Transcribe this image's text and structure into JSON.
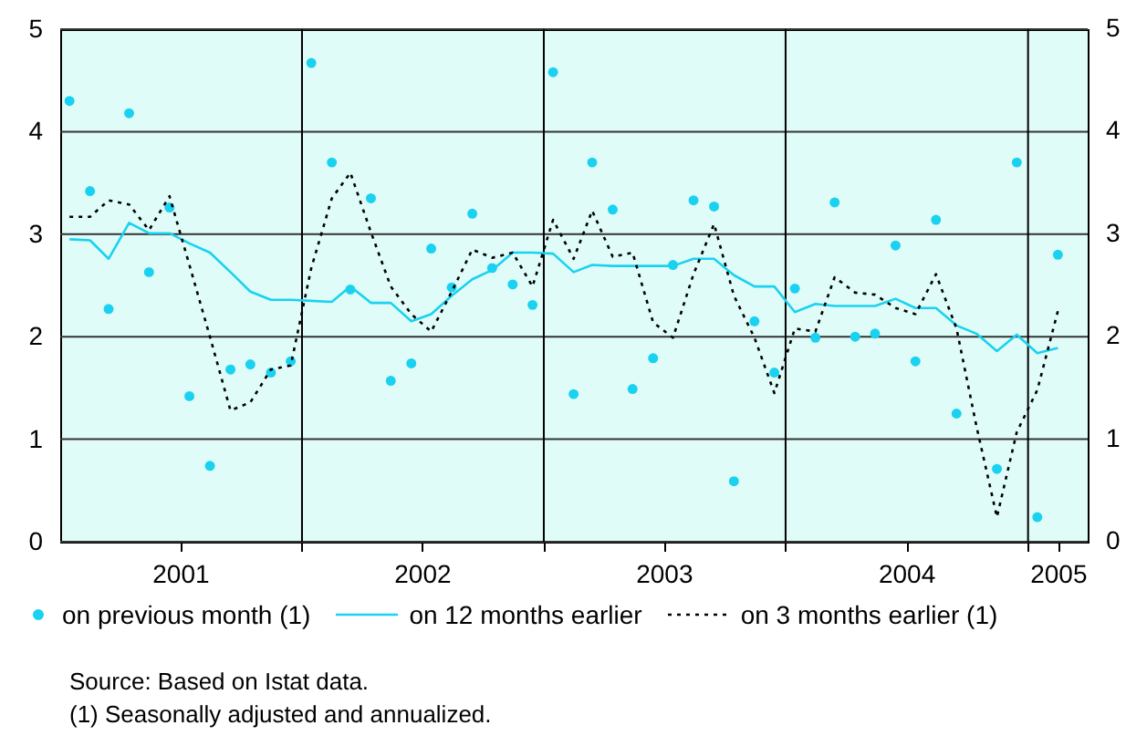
{
  "chart_data": {
    "type": "line",
    "x": [
      "2001-01-15",
      "2001-02-15",
      "2001-03-15",
      "2001-04-15",
      "2001-05-15",
      "2001-06-15",
      "2001-07-15",
      "2001-08-15",
      "2001-09-15",
      "2001-10-15",
      "2001-11-15",
      "2001-12-15",
      "2002-01-15",
      "2002-02-15",
      "2002-03-15",
      "2002-04-15",
      "2002-05-15",
      "2002-06-15",
      "2002-07-15",
      "2002-08-15",
      "2002-09-15",
      "2002-10-15",
      "2002-11-15",
      "2002-12-15",
      "2003-01-15",
      "2003-02-15",
      "2003-03-15",
      "2003-04-15",
      "2003-05-15",
      "2003-06-15",
      "2003-07-15",
      "2003-08-15",
      "2003-09-15",
      "2003-10-15",
      "2003-11-15",
      "2003-12-15",
      "2004-01-15",
      "2004-02-15",
      "2004-03-15",
      "2004-04-15",
      "2004-05-15",
      "2004-06-15",
      "2004-07-15",
      "2004-08-15",
      "2004-09-15",
      "2004-10-15",
      "2004-11-15",
      "2004-12-15",
      "2005-01-15",
      "2005-02-15"
    ],
    "series": [
      {
        "name": "on previous month (1)",
        "type": "scatter",
        "marker": "circle",
        "color": "#1ad2f0",
        "values": [
          4.3,
          3.42,
          2.27,
          4.18,
          2.63,
          3.26,
          1.42,
          0.74,
          1.68,
          1.73,
          1.65,
          1.76,
          4.67,
          3.7,
          2.46,
          3.35,
          1.57,
          1.74,
          2.86,
          2.48,
          3.2,
          2.67,
          2.51,
          2.31,
          4.58,
          1.44,
          3.7,
          3.24,
          1.49,
          1.79,
          2.7,
          3.33,
          3.27,
          0.59,
          2.15,
          1.65,
          2.47,
          1.99,
          3.31,
          2.0,
          2.03,
          2.89,
          1.76,
          3.14,
          1.25,
          null,
          0.71,
          3.7,
          0.24,
          2.8
        ]
      },
      {
        "name": "on 12 months earlier",
        "line_style": "solid",
        "color": "#1ad2f0",
        "values": [
          2.95,
          2.94,
          2.76,
          3.11,
          3.01,
          3.01,
          2.91,
          2.82,
          2.63,
          2.44,
          2.36,
          2.36,
          2.35,
          2.34,
          2.49,
          2.33,
          2.33,
          2.15,
          2.22,
          2.4,
          2.56,
          2.65,
          2.82,
          2.82,
          2.81,
          2.63,
          2.7,
          2.69,
          2.69,
          2.69,
          2.69,
          2.76,
          2.76,
          2.6,
          2.49,
          2.49,
          2.24,
          2.32,
          2.3,
          2.3,
          2.3,
          2.37,
          2.28,
          2.28,
          2.11,
          2.03,
          1.86,
          2.02,
          1.84,
          1.89
        ]
      },
      {
        "name": "on 3 months earlier (1)",
        "line_style": "dotted",
        "color": "#000000",
        "values": [
          3.17,
          3.17,
          3.33,
          3.29,
          3.04,
          3.37,
          2.7,
          2.0,
          1.28,
          1.36,
          1.68,
          1.72,
          2.67,
          3.35,
          3.6,
          3.02,
          2.49,
          2.22,
          2.05,
          2.44,
          2.85,
          2.77,
          2.82,
          2.49,
          3.14,
          2.76,
          3.23,
          2.78,
          2.82,
          2.14,
          1.99,
          2.61,
          3.1,
          2.4,
          1.99,
          1.45,
          2.08,
          2.05,
          2.58,
          2.43,
          2.41,
          2.28,
          2.22,
          2.61,
          2.08,
          1.13,
          0.24,
          1.07,
          1.48,
          2.25
        ]
      }
    ],
    "xlim": [
      "2001-01-01",
      "2005-04-01"
    ],
    "xticks": [
      {
        "value": "2001-07-01",
        "label": "2001"
      },
      {
        "value": "2002-01-01",
        "label": null
      },
      {
        "value": "2002-07-01",
        "label": "2002"
      },
      {
        "value": "2003-01-01",
        "label": null
      },
      {
        "value": "2003-07-01",
        "label": "2003"
      },
      {
        "value": "2004-01-01",
        "label": null
      },
      {
        "value": "2004-07-01",
        "label": "2004"
      },
      {
        "value": "2005-01-01",
        "label": null
      },
      {
        "value": "2005-02-15",
        "label": "2005"
      }
    ],
    "ylim": [
      0,
      5
    ],
    "yticks": [
      0,
      1,
      2,
      3,
      4,
      5
    ],
    "y2lim": [
      0,
      5
    ],
    "y2ticks": [
      0,
      1,
      2,
      3,
      4,
      5
    ],
    "grid": true,
    "legend": "bottom",
    "annotations": [
      "Source: Based on Istat data.",
      "(1) Seasonally adjusted and annualized."
    ]
  }
}
